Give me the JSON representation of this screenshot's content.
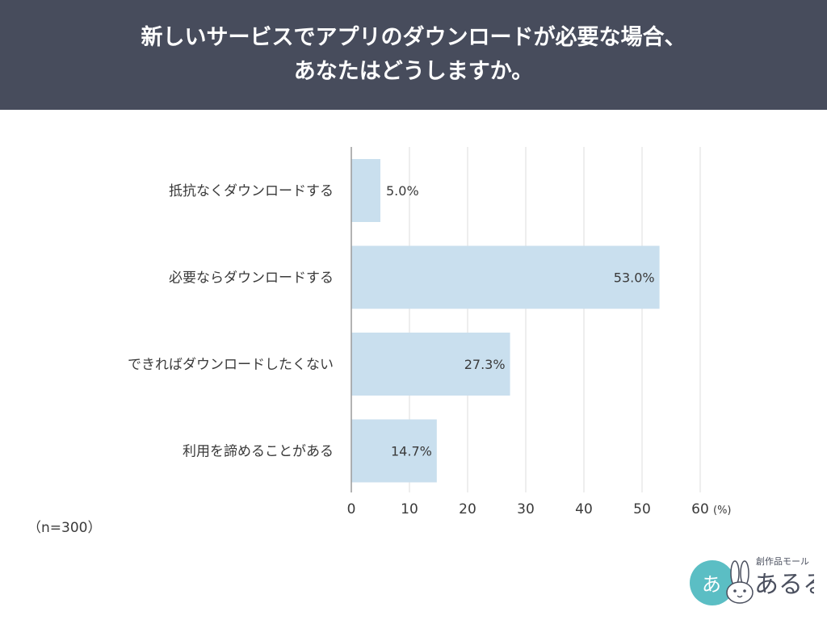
{
  "header": {
    "title_line1": "新しいサービスでアプリのダウンロードが必要な場合、",
    "title_line2": "あなたはどうしますか。"
  },
  "chart_data": {
    "type": "bar",
    "orientation": "horizontal",
    "categories": [
      "抵抗なくダウンロードする",
      "必要ならダウンロードする",
      "できればダウンロードしたくない",
      "利用を諦めることがある"
    ],
    "values": [
      5.0,
      53.0,
      27.3,
      14.7
    ],
    "value_labels": [
      "5.0%",
      "53.0%",
      "27.3%",
      "14.7%"
    ],
    "xticks": [
      "0",
      "10",
      "20",
      "30",
      "40",
      "50",
      "60"
    ],
    "xlim": [
      0,
      60
    ],
    "unit": "(%)",
    "grid": true,
    "bar_color": "#c9dfee"
  },
  "sample_note": "（n=300）",
  "logo": {
    "small_text": "創作品モール",
    "big_text": "あるる",
    "circle_color": "#5bbec4"
  }
}
